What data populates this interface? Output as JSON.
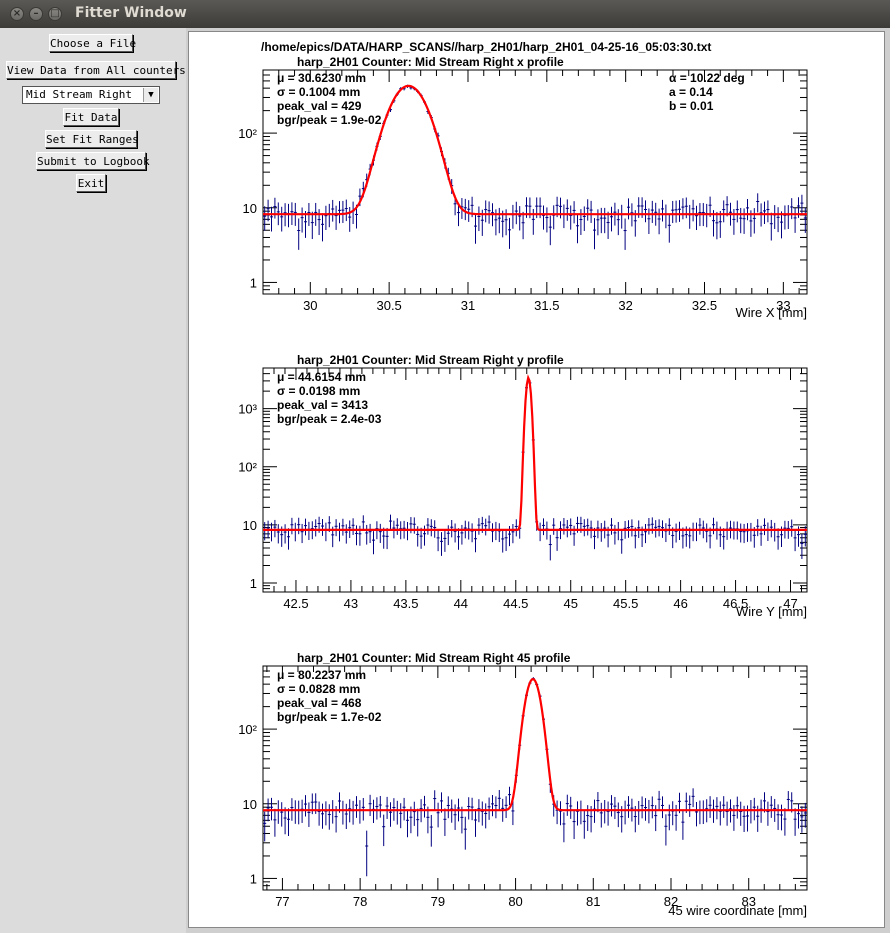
{
  "window": {
    "title": "Fitter Window"
  },
  "controls": {
    "choose_file": "Choose a File",
    "view_all": "View Data from All counters",
    "counter_select": "Mid Stream Right",
    "fit_data": "Fit Data",
    "set_fit_ranges": "Set Fit Ranges",
    "submit_logbook": "Submit to Logbook",
    "exit": "Exit"
  },
  "canvas": {
    "file_path": "/home/epics/DATA/HARP_SCANS//harp_2H01/harp_2H01_04-25-16_05:03:30.txt",
    "angle_stats": [
      "α = 10.22 deg",
      "a = 0.14",
      "b = 0.01"
    ]
  },
  "chart_data": [
    {
      "type": "scatter",
      "title": "harp_2H01   Counter: Mid Stream Right x profile",
      "xlabel": "Wire X [mm]",
      "ylabel": "",
      "xlim": [
        29.7,
        33.15
      ],
      "ylim": [
        0.7,
        700
      ],
      "yscale": "log",
      "xticks": [
        30,
        30.5,
        31,
        31.5,
        32,
        32.5,
        33
      ],
      "xtick_labels": [
        "30",
        "30.5",
        "31",
        "31.5",
        "32",
        "32.5",
        "33"
      ],
      "yticks": [
        1,
        10,
        100
      ],
      "ytick_labels": [
        "1",
        "10",
        "10²"
      ],
      "stats": [
        "μ = 30.6230 mm",
        "σ = 0.1004 mm",
        "peak_val = 429",
        "bgr/peak = 1.9e-02"
      ],
      "fit": {
        "mu": 30.623,
        "sigma": 0.1004,
        "peak": 429,
        "background": 8.2,
        "color": "#ff0000"
      },
      "points_color": "#000080"
    },
    {
      "type": "scatter",
      "title": "harp_2H01  Counter: Mid Stream Right y profile",
      "xlabel": "Wire Y [mm]",
      "ylabel": "",
      "xlim": [
        42.2,
        47.15
      ],
      "ylim": [
        0.7,
        5000
      ],
      "yscale": "log",
      "xticks": [
        42.5,
        43,
        43.5,
        44,
        44.5,
        45,
        45.5,
        46,
        46.5,
        47
      ],
      "xtick_labels": [
        "42.5",
        "43",
        "43.5",
        "44",
        "44.5",
        "45",
        "45.5",
        "46",
        "46.5",
        "47"
      ],
      "yticks": [
        1,
        10,
        100,
        1000
      ],
      "ytick_labels": [
        "1",
        "10",
        "10²",
        "10³"
      ],
      "stats": [
        "μ = 44.6154 mm",
        "σ = 0.0198 mm",
        "peak_val = 3413",
        "bgr/peak = 2.4e-03"
      ],
      "fit": {
        "mu": 44.6154,
        "sigma": 0.0198,
        "peak": 3413,
        "background": 8.2,
        "color": "#ff0000"
      },
      "points_color": "#000080"
    },
    {
      "type": "scatter",
      "title": "harp_2H01  Counter: Mid Stream Right 45 profile",
      "xlabel": "45  wire coordinate [mm]",
      "ylabel": "",
      "xlim": [
        76.75,
        83.75
      ],
      "ylim": [
        0.7,
        700
      ],
      "yscale": "log",
      "xticks": [
        77,
        78,
        79,
        80,
        81,
        82,
        83
      ],
      "xtick_labels": [
        "77",
        "78",
        "79",
        "80",
        "81",
        "82",
        "83"
      ],
      "yticks": [
        1,
        10,
        100
      ],
      "ytick_labels": [
        "1",
        "10",
        "10²"
      ],
      "stats": [
        "μ = 80.2237 mm",
        "σ = 0.0828 mm",
        "peak_val = 468",
        "bgr/peak = 1.7e-02"
      ],
      "fit": {
        "mu": 80.2237,
        "sigma": 0.0828,
        "peak": 468,
        "background": 8.2,
        "color": "#ff0000"
      },
      "points_color": "#000080"
    }
  ]
}
